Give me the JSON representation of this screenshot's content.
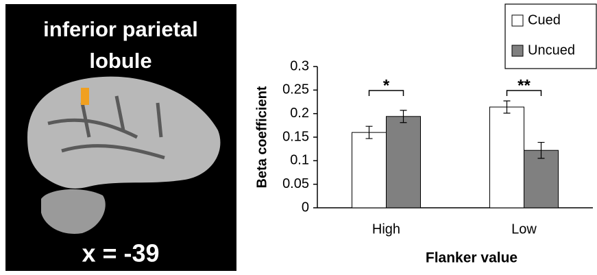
{
  "image_panel": {
    "title_lines": [
      "inferior parietal",
      "lobule"
    ],
    "coordinate": "x = -39"
  },
  "chart_data": {
    "type": "bar",
    "x_label": "Flanker value",
    "y_label": "Beta coefficient",
    "categories": [
      "High",
      "Low"
    ],
    "series": [
      {
        "name": "Cued",
        "color": "#ffffff",
        "values": [
          0.16,
          0.214
        ],
        "errors": [
          0.013,
          0.013
        ]
      },
      {
        "name": "Uncued",
        "color": "#808080",
        "values": [
          0.194,
          0.122
        ],
        "errors": [
          0.013,
          0.017
        ]
      }
    ],
    "annotations": [
      "*",
      "**"
    ],
    "ylim": [
      0,
      0.3
    ],
    "yticks": [
      0,
      0.05,
      0.1,
      0.15,
      0.2,
      0.25,
      0.3
    ],
    "legend": "top-right"
  }
}
